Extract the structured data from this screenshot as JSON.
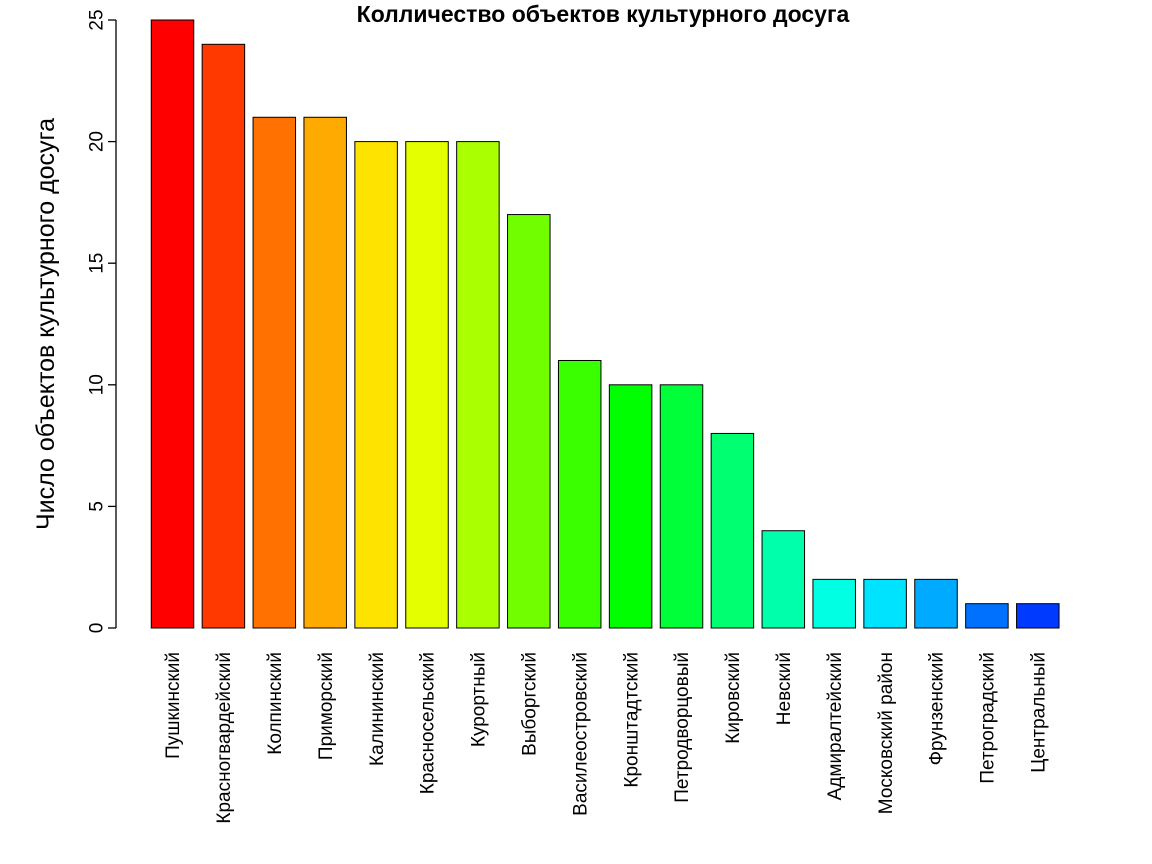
{
  "chart_data": {
    "type": "bar",
    "title": "Колличество объектов культурного досуга",
    "xlabel": "",
    "ylabel": "Число объектов культурного досуга",
    "ylim": [
      0,
      25
    ],
    "yticks": [
      0,
      5,
      10,
      15,
      20,
      25
    ],
    "grid": false,
    "categories": [
      "Пушкинский",
      "Красногвардейский",
      "Колпинский",
      "Приморский",
      "Калининский",
      "Красносельский",
      "Курортный",
      "Выборгский",
      "Василеостровский",
      "Кронштадтский",
      "Петродворцовый",
      "Кировский",
      "Невский",
      "Адмиралтейский",
      "Московский район",
      "Фрунзенский",
      "Петроградский",
      "Центральный"
    ],
    "values": [
      25,
      24,
      21,
      21,
      20,
      20,
      20,
      17,
      11,
      10,
      10,
      8,
      4,
      2,
      2,
      2,
      1,
      1
    ],
    "colors": [
      "#FF0000",
      "#FF3900",
      "#FF7100",
      "#FFAA00",
      "#FFE300",
      "#E3FF00",
      "#AAFF00",
      "#71FF00",
      "#39FF00",
      "#00FF00",
      "#00FF39",
      "#00FF71",
      "#00FFAA",
      "#00FFE3",
      "#00E3FF",
      "#00AAFF",
      "#0071FF",
      "#0039FF"
    ]
  }
}
